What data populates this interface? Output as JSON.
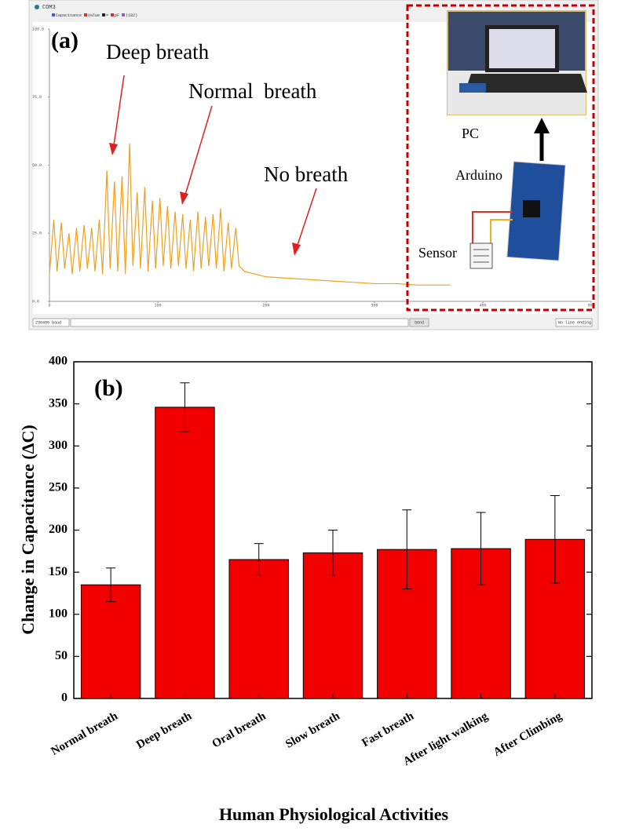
{
  "chart_data": [
    {
      "type": "line",
      "panel_label": "(a)",
      "window_title": "COM3",
      "legend_items": [
        "Capacitance",
        "Value",
        "=",
        "pF",
        "(182)"
      ],
      "controls": {
        "baud": "230400 baud",
        "send": "Send",
        "line_ending": "No line ending"
      },
      "annotations": [
        "Deep breath",
        "Normal  breath",
        "No breath"
      ],
      "photo_labels": [
        "PC",
        "Arduino",
        "Sensor"
      ],
      "x": [
        0,
        4,
        7,
        11,
        14,
        18,
        21,
        25,
        28,
        32,
        35,
        39,
        42,
        46,
        49,
        53,
        56,
        60,
        63,
        67,
        70,
        74,
        77,
        81,
        84,
        88,
        91,
        95,
        98,
        102,
        105,
        109,
        112,
        116,
        119,
        123,
        126,
        130,
        133,
        137,
        140,
        144,
        147,
        151,
        154,
        158,
        161,
        165,
        168,
        172,
        175,
        180,
        190,
        200,
        220,
        240,
        260,
        280,
        300,
        320,
        340,
        360,
        370
      ],
      "series": [
        {
          "name": "Capacitance",
          "color": "#f0a020",
          "values": [
            10,
            30,
            11,
            29,
            12,
            25,
            10,
            27,
            11,
            28,
            12,
            27,
            11,
            30,
            10,
            48,
            12,
            44,
            11,
            46,
            10,
            58,
            13,
            40,
            12,
            42,
            11,
            37,
            12,
            38,
            13,
            35,
            12,
            33,
            13,
            32,
            12,
            30,
            11,
            33,
            12,
            31,
            13,
            32,
            12,
            34,
            11,
            29,
            12,
            27,
            13,
            11,
            10,
            9,
            8.5,
            8,
            7.5,
            7,
            6.5,
            6.5,
            6,
            6,
            6
          ]
        }
      ],
      "xlim": [
        0,
        500
      ],
      "xticks": [
        0,
        100,
        200,
        300,
        400,
        500
      ],
      "ylim": [
        0,
        100
      ],
      "yticks": [
        {
          "value": 0,
          "label": "0.0"
        },
        {
          "value": 25,
          "label": "25.0"
        },
        {
          "value": 50,
          "label": "50.0"
        },
        {
          "value": 75,
          "label": "75.0"
        },
        {
          "value": 100,
          "label": "100.0"
        }
      ]
    },
    {
      "type": "bar",
      "panel_label": "(b)",
      "x_label": "Human Physiological Activities",
      "y_label": "Change in Capacitance (ΔC)",
      "categories": [
        "Normal breath",
        "Deep breath",
        "Oral breath",
        "Slow breath",
        "Fast breath",
        "After light walking",
        "After Climbing"
      ],
      "values": [
        135,
        346,
        165,
        173,
        177,
        178,
        189
      ],
      "errors": [
        20,
        29,
        19,
        27,
        47,
        43,
        52
      ],
      "color": "#f20000",
      "ylim": [
        0,
        400
      ],
      "yticks": [
        0,
        50,
        100,
        150,
        200,
        250,
        300,
        350,
        400
      ]
    }
  ]
}
